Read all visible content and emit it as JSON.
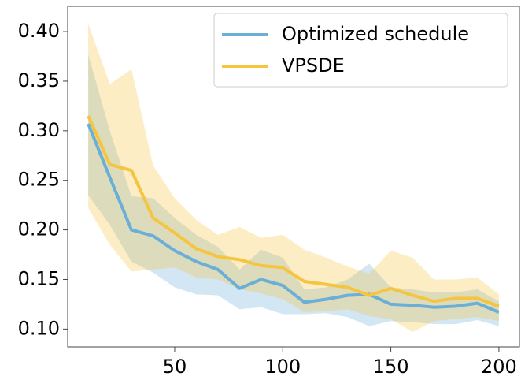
{
  "chart_data": {
    "type": "line",
    "x": [
      10,
      20,
      30,
      40,
      50,
      60,
      70,
      80,
      90,
      100,
      110,
      120,
      130,
      140,
      150,
      160,
      170,
      180,
      190,
      200
    ],
    "series": [
      {
        "name": "Optimized schedule",
        "color": "#6baed6",
        "values": [
          0.307,
          0.253,
          0.2,
          0.194,
          0.179,
          0.168,
          0.16,
          0.141,
          0.15,
          0.144,
          0.127,
          0.13,
          0.134,
          0.135,
          0.125,
          0.124,
          0.122,
          0.123,
          0.126,
          0.117
        ],
        "upper": [
          0.377,
          0.3,
          0.234,
          0.232,
          0.212,
          0.195,
          0.183,
          0.16,
          0.18,
          0.172,
          0.14,
          0.142,
          0.15,
          0.166,
          0.142,
          0.14,
          0.137,
          0.137,
          0.14,
          0.128
        ],
        "lower": [
          0.235,
          0.205,
          0.168,
          0.157,
          0.142,
          0.135,
          0.134,
          0.12,
          0.122,
          0.115,
          0.115,
          0.116,
          0.112,
          0.103,
          0.108,
          0.107,
          0.105,
          0.105,
          0.109,
          0.103
        ]
      },
      {
        "name": "VPSDE",
        "color": "#f5c540",
        "values": [
          0.315,
          0.266,
          0.26,
          0.212,
          0.197,
          0.181,
          0.173,
          0.17,
          0.164,
          0.162,
          0.148,
          0.145,
          0.142,
          0.134,
          0.141,
          0.134,
          0.128,
          0.131,
          0.131,
          0.123
        ],
        "upper": [
          0.408,
          0.347,
          0.362,
          0.265,
          0.232,
          0.21,
          0.195,
          0.203,
          0.192,
          0.195,
          0.18,
          0.172,
          0.163,
          0.156,
          0.179,
          0.172,
          0.15,
          0.15,
          0.152,
          0.135
        ],
        "lower": [
          0.222,
          0.185,
          0.158,
          0.16,
          0.162,
          0.152,
          0.15,
          0.14,
          0.136,
          0.13,
          0.117,
          0.118,
          0.12,
          0.113,
          0.11,
          0.097,
          0.108,
          0.11,
          0.112,
          0.108
        ]
      }
    ],
    "xlim": [
      0.5,
      209.5
    ],
    "xticks": [
      50,
      100,
      150,
      200
    ],
    "ylim": [
      0.082,
      0.4255
    ],
    "yticks": [
      {
        "value": 0.1,
        "label": "0.10"
      },
      {
        "value": 0.15,
        "label": "0.15"
      },
      {
        "value": 0.2,
        "label": "0.20"
      },
      {
        "value": 0.25,
        "label": "0.25"
      },
      {
        "value": 0.3,
        "label": "0.30"
      },
      {
        "value": 0.35,
        "label": "0.35"
      },
      {
        "value": 0.4,
        "label": "0.40"
      }
    ],
    "legend": "upper right",
    "grid": false
  }
}
